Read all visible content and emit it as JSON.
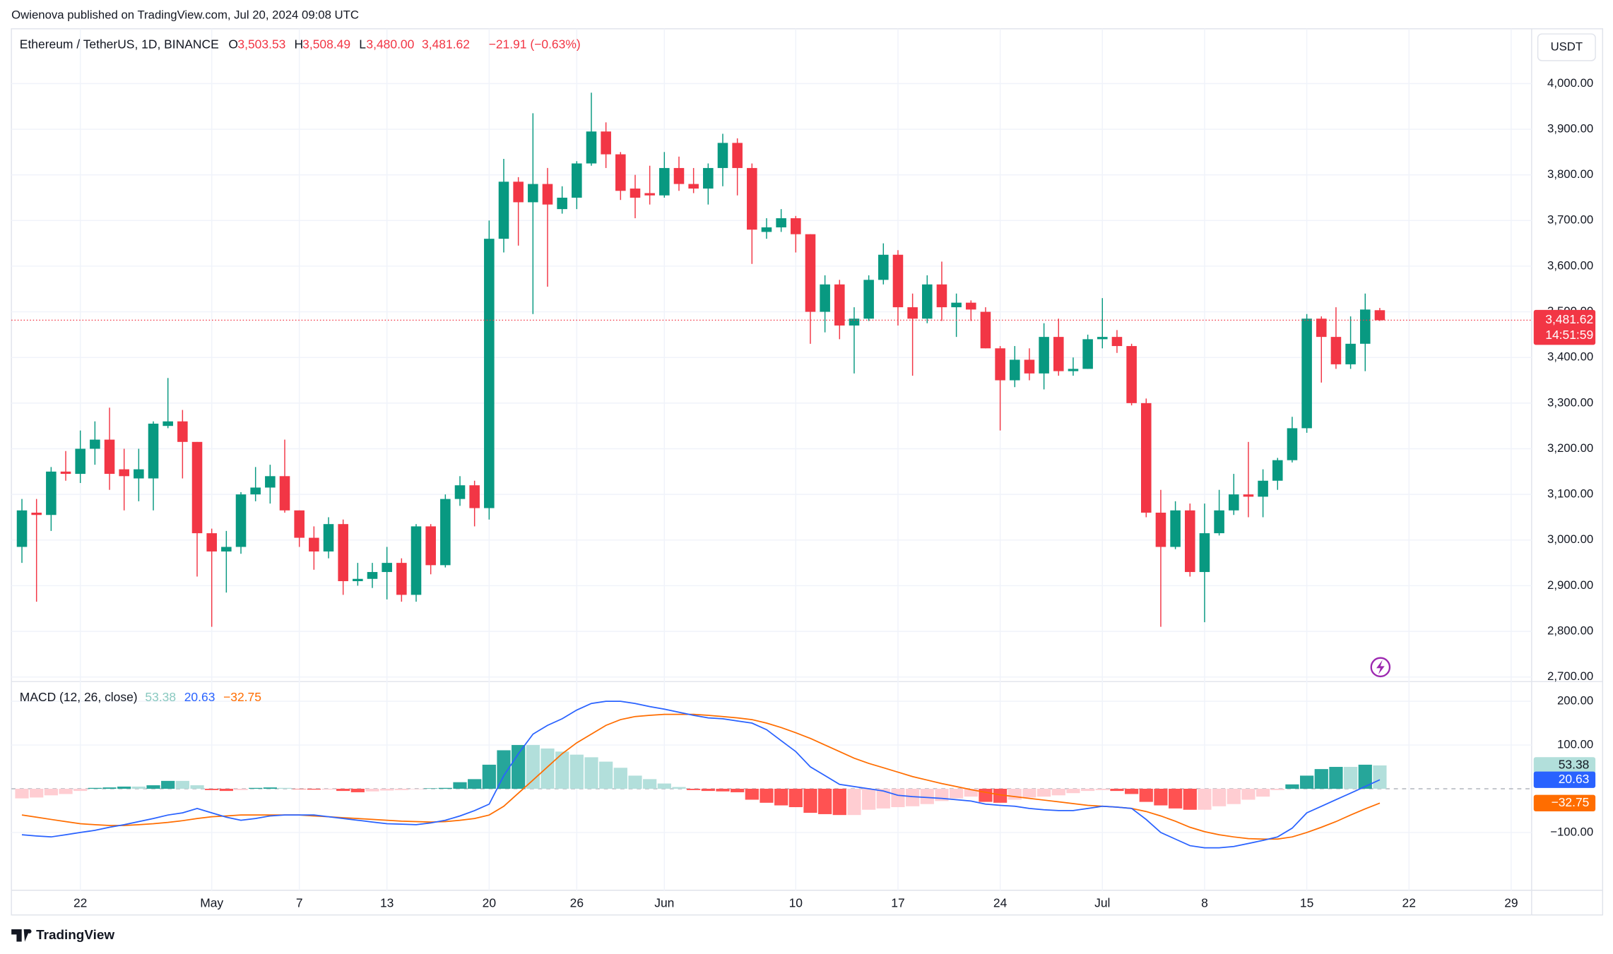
{
  "header": "Owienova published on TradingView.com, Jul 20, 2024 09:08 UTC",
  "footer": "TradingView",
  "chart_data": [
    {
      "type": "candlestick",
      "title": "Ethereum / TetherUS, 1D, BINANCE",
      "ohlc_legend": [
        {
          "label": "O",
          "value": "3,503.53"
        },
        {
          "label": "H",
          "value": "3,508.49"
        },
        {
          "label": "L",
          "value": "3,480.00"
        },
        {
          "label": "",
          "value": "3,481.62"
        }
      ],
      "change_label": "−21.91 (−0.63%)",
      "currency": "USDT",
      "last_price": 3481.62,
      "last_price_label": "3,481.62",
      "countdown": "14:51:59",
      "up_color": "#089981",
      "down_color": "#f23645",
      "xlim": [
        -0.72,
        103.4
      ],
      "ylim": [
        2690,
        4120
      ],
      "yticks": [
        {
          "value": 4000,
          "label": "4,000.00"
        },
        {
          "value": 3900,
          "label": "3,900.00"
        },
        {
          "value": 3800,
          "label": "3,800.00"
        },
        {
          "value": 3700,
          "label": "3,700.00"
        },
        {
          "value": 3600,
          "label": "3,600.00"
        },
        {
          "value": 3500,
          "label": "3,500.00"
        },
        {
          "value": 3400,
          "label": "3,400.00"
        },
        {
          "value": 3300,
          "label": "3,300.00"
        },
        {
          "value": 3200,
          "label": "3,200.00"
        },
        {
          "value": 3100,
          "label": "3,100.00"
        },
        {
          "value": 3000,
          "label": "3,000.00"
        },
        {
          "value": 2900,
          "label": "2,900.00"
        },
        {
          "value": 2800,
          "label": "2,800.00"
        },
        {
          "value": 2700,
          "label": "2,700.00"
        }
      ],
      "grid": true,
      "open": [
        2985,
        3060,
        3055,
        3150,
        3145,
        3200,
        3220,
        3155,
        3135,
        3135,
        3250,
        3260,
        3215,
        3015,
        2975,
        2985,
        3100,
        3115,
        3140,
        3065,
        3005,
        2975,
        3035,
        2910,
        2915,
        2930,
        2950,
        2880,
        3030,
        2945,
        3090,
        3120,
        3070,
        3660,
        3785,
        3740,
        3780,
        3725,
        3750,
        3825,
        3895,
        3845,
        3770,
        3760,
        3755,
        3815,
        3780,
        3770,
        3815,
        3870,
        3815,
        3675,
        3685,
        3705,
        3670,
        3500,
        3560,
        3470,
        3485,
        3570,
        3625,
        3510,
        3485,
        3560,
        3510,
        3520,
        3500,
        3420,
        3350,
        3395,
        3365,
        3445,
        3370,
        3375,
        3440,
        3445,
        3425,
        3300,
        3060,
        2985,
        3065,
        2930,
        3015,
        3065,
        3100,
        3095,
        3130,
        3175,
        3245,
        3485,
        3445,
        3385,
        3430,
        3503.53
      ],
      "high": [
        3090,
        3090,
        3160,
        3195,
        3240,
        3260,
        3290,
        3200,
        3200,
        3260,
        3355,
        3285,
        3215,
        3025,
        3020,
        3105,
        3160,
        3165,
        3220,
        3065,
        3030,
        3050,
        3045,
        2950,
        2950,
        2985,
        2960,
        3035,
        3035,
        3100,
        3140,
        3130,
        3700,
        3835,
        3795,
        3935,
        3815,
        3775,
        3830,
        3980,
        3915,
        3850,
        3800,
        3820,
        3850,
        3840,
        3815,
        3825,
        3890,
        3880,
        3825,
        3705,
        3725,
        3710,
        3670,
        3580,
        3570,
        3510,
        3580,
        3650,
        3635,
        3540,
        3580,
        3610,
        3540,
        3525,
        3510,
        3425,
        3425,
        3420,
        3475,
        3485,
        3400,
        3450,
        3530,
        3460,
        3430,
        3310,
        3110,
        3085,
        3080,
        3080,
        3110,
        3145,
        3215,
        3155,
        3180,
        3270,
        3495,
        3490,
        3510,
        3490,
        3540,
        3508.49
      ],
      "low": [
        2950,
        2865,
        3020,
        3130,
        3125,
        3165,
        3110,
        3065,
        3085,
        3065,
        3245,
        3135,
        2920,
        2810,
        2885,
        2970,
        3085,
        3080,
        3060,
        2985,
        2935,
        2960,
        2880,
        2900,
        2895,
        2870,
        2865,
        2865,
        2925,
        2940,
        3075,
        3030,
        3045,
        3630,
        3645,
        3495,
        3555,
        3715,
        3725,
        3820,
        3815,
        3745,
        3705,
        3735,
        3750,
        3765,
        3760,
        3735,
        3775,
        3755,
        3605,
        3660,
        3675,
        3630,
        3430,
        3455,
        3440,
        3365,
        3480,
        3560,
        3470,
        3360,
        3475,
        3480,
        3445,
        3480,
        3420,
        3240,
        3335,
        3350,
        3330,
        3360,
        3360,
        3375,
        3420,
        3410,
        3295,
        3050,
        2810,
        2980,
        2920,
        2820,
        3010,
        3055,
        3050,
        3050,
        3110,
        3170,
        3235,
        3345,
        3375,
        3375,
        3370,
        3480.0
      ],
      "close": [
        3065,
        3055,
        3150,
        3145,
        3200,
        3220,
        3145,
        3140,
        3155,
        3255,
        3260,
        3215,
        3015,
        2975,
        2985,
        3100,
        3115,
        3140,
        3065,
        3005,
        2975,
        3035,
        2910,
        2915,
        2930,
        2950,
        2880,
        3030,
        2945,
        3090,
        3120,
        3070,
        3660,
        3785,
        3740,
        3780,
        3735,
        3750,
        3825,
        3895,
        3845,
        3765,
        3750,
        3755,
        3815,
        3780,
        3770,
        3815,
        3870,
        3815,
        3680,
        3685,
        3705,
        3670,
        3500,
        3560,
        3470,
        3485,
        3570,
        3625,
        3510,
        3485,
        3560,
        3510,
        3520,
        3505,
        3420,
        3350,
        3395,
        3365,
        3445,
        3370,
        3375,
        3440,
        3445,
        3425,
        3300,
        3060,
        2985,
        3065,
        2930,
        3015,
        3065,
        3100,
        3095,
        3130,
        3175,
        3245,
        3485,
        3445,
        3385,
        3430,
        3505,
        3481.62
      ]
    },
    {
      "type": "macd",
      "title": "MACD (12, 26, close)",
      "xlim": [
        -0.72,
        103.4
      ],
      "ylim": [
        -232,
        245
      ],
      "yticks": [
        {
          "value": 200,
          "label": "200.00"
        },
        {
          "value": 100,
          "label": "100.00"
        },
        {
          "value": -100,
          "label": "−100.00"
        }
      ],
      "xticks": [
        {
          "value": 4,
          "label": "22"
        },
        {
          "value": 13,
          "label": "May"
        },
        {
          "value": 19,
          "label": "7"
        },
        {
          "value": 25,
          "label": "13"
        },
        {
          "value": 32,
          "label": "20"
        },
        {
          "value": 38,
          "label": "26"
        },
        {
          "value": 44,
          "label": "Jun"
        },
        {
          "value": 53,
          "label": "10"
        },
        {
          "value": 60,
          "label": "17"
        },
        {
          "value": 67,
          "label": "24"
        },
        {
          "value": 74,
          "label": "Jul"
        },
        {
          "value": 81,
          "label": "8"
        },
        {
          "value": 88,
          "label": "15"
        },
        {
          "value": 95,
          "label": "22"
        },
        {
          "value": 102,
          "label": "29"
        }
      ],
      "hist_colors": {
        "up_grow": "#26a69a",
        "up_fall": "#b2dfdb",
        "down_fall": "#ff5252",
        "down_grow": "#ffcdd2"
      },
      "macd_color": "#2962ff",
      "signal_color": "#ff6d00",
      "histogram": [
        -22,
        -20,
        -15,
        -12,
        -5,
        2,
        3,
        5,
        5,
        8,
        18,
        18,
        8,
        -3,
        -5,
        -3,
        2,
        3,
        2,
        -1,
        -2,
        -2,
        -5,
        -8,
        -6,
        -4,
        -3,
        -1,
        1,
        2,
        15,
        22,
        55,
        88,
        100,
        100,
        92,
        85,
        78,
        72,
        62,
        48,
        30,
        22,
        12,
        4,
        -3,
        -5,
        -6,
        -8,
        -25,
        -32,
        -38,
        -42,
        -55,
        -58,
        -60,
        -60,
        -48,
        -45,
        -42,
        -40,
        -35,
        -28,
        -22,
        -18,
        -30,
        -32,
        -25,
        -20,
        -18,
        -15,
        -10,
        -5,
        -3,
        -5,
        -12,
        -30,
        -38,
        -45,
        -48,
        -48,
        -40,
        -35,
        -25,
        -18,
        -3,
        10,
        30,
        45,
        50,
        50,
        55,
        53.38
      ],
      "macd": [
        -105,
        -108,
        -110,
        -105,
        -100,
        -95,
        -88,
        -82,
        -75,
        -68,
        -60,
        -55,
        -45,
        -55,
        -65,
        -72,
        -68,
        -62,
        -60,
        -60,
        -60,
        -64,
        -68,
        -72,
        -76,
        -80,
        -81,
        -82,
        -78,
        -72,
        -62,
        -50,
        -35,
        30,
        80,
        125,
        145,
        160,
        180,
        195,
        200,
        200,
        195,
        188,
        182,
        175,
        168,
        162,
        160,
        155,
        150,
        135,
        110,
        85,
        50,
        30,
        10,
        5,
        0,
        -5,
        -15,
        -18,
        -20,
        -22,
        -25,
        -28,
        -35,
        -38,
        -40,
        -45,
        -48,
        -50,
        -50,
        -45,
        -40,
        -42,
        -45,
        -70,
        -100,
        -115,
        -130,
        -135,
        -135,
        -132,
        -125,
        -118,
        -110,
        -90,
        -55,
        -40,
        -25,
        -10,
        5,
        20.63
      ],
      "signal": [
        -60,
        -65,
        -70,
        -75,
        -80,
        -82,
        -84,
        -84,
        -82,
        -80,
        -77,
        -73,
        -68,
        -64,
        -62,
        -60,
        -60,
        -60,
        -60,
        -60,
        -62,
        -64,
        -66,
        -68,
        -70,
        -72,
        -74,
        -75,
        -76,
        -75,
        -72,
        -68,
        -60,
        -40,
        -10,
        20,
        50,
        80,
        105,
        125,
        145,
        158,
        165,
        168,
        170,
        170,
        170,
        168,
        165,
        162,
        158,
        150,
        140,
        128,
        115,
        100,
        85,
        70,
        58,
        48,
        38,
        28,
        20,
        12,
        5,
        -2,
        -8,
        -14,
        -18,
        -22,
        -26,
        -30,
        -34,
        -38,
        -40,
        -42,
        -45,
        -52,
        -62,
        -74,
        -88,
        -98,
        -105,
        -110,
        -114,
        -115,
        -115,
        -110,
        -100,
        -88,
        -75,
        -60,
        -46,
        -32.75
      ],
      "last_labels": {
        "histogram": "53.38",
        "macd": "20.63",
        "signal": "−32.75"
      }
    }
  ]
}
